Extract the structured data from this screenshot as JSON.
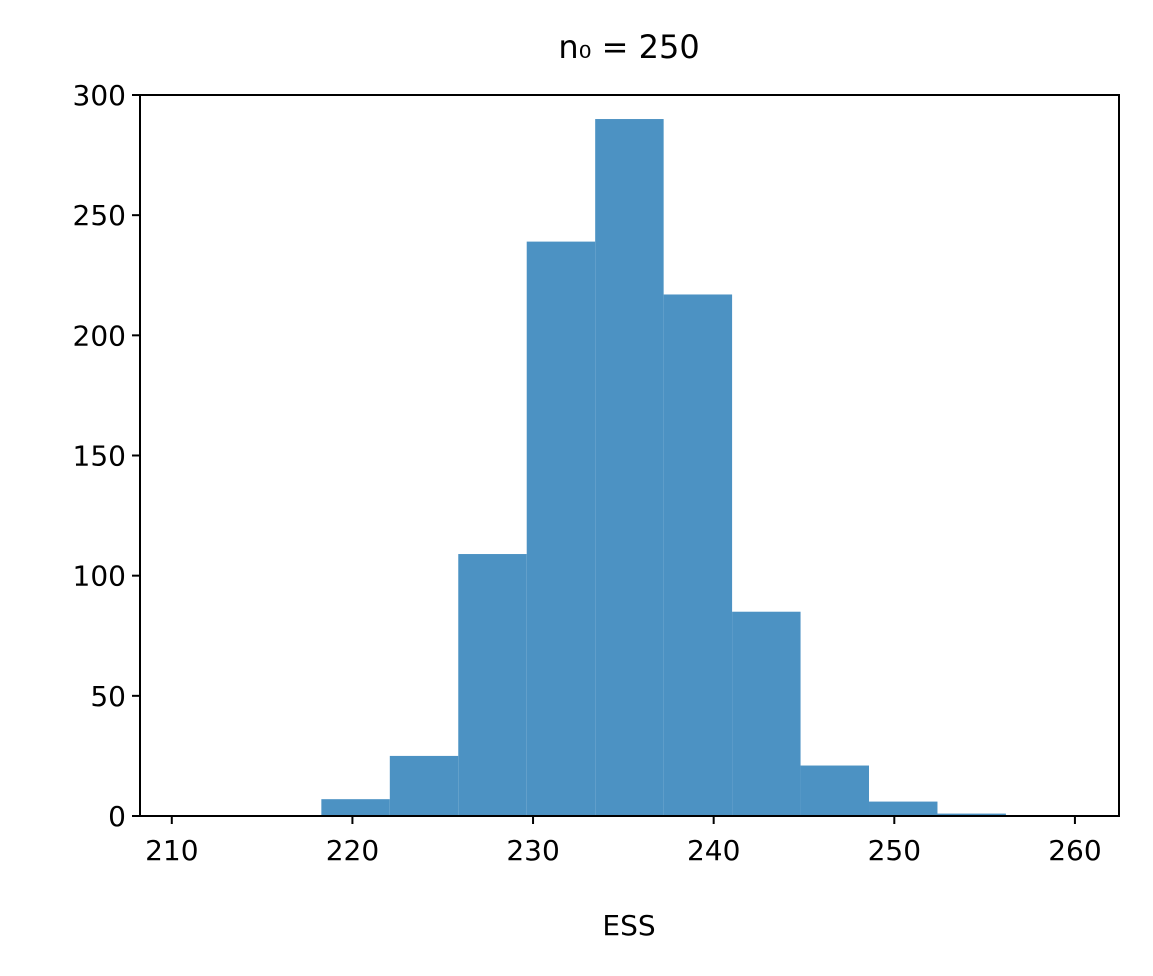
{
  "chart_data": {
    "type": "histogram",
    "title": "n₀ = 250",
    "x_label": "ESS",
    "bins": [
      210.7,
      214.49,
      218.28,
      222.07,
      225.86,
      229.65,
      233.44,
      237.23,
      241.02,
      244.81,
      248.6,
      252.39,
      256.18,
      259.97
    ],
    "counts": [
      0,
      0,
      7,
      25,
      109,
      239,
      290,
      217,
      85,
      21,
      6,
      1,
      0
    ],
    "color": "#4c92c3",
    "xlim": [
      208.24,
      262.44
    ],
    "xticks": [
      210,
      220,
      230,
      240,
      250,
      260
    ],
    "ylim": [
      0,
      300
    ],
    "yticks": [
      0,
      50,
      100,
      150,
      200,
      250,
      300
    ]
  }
}
